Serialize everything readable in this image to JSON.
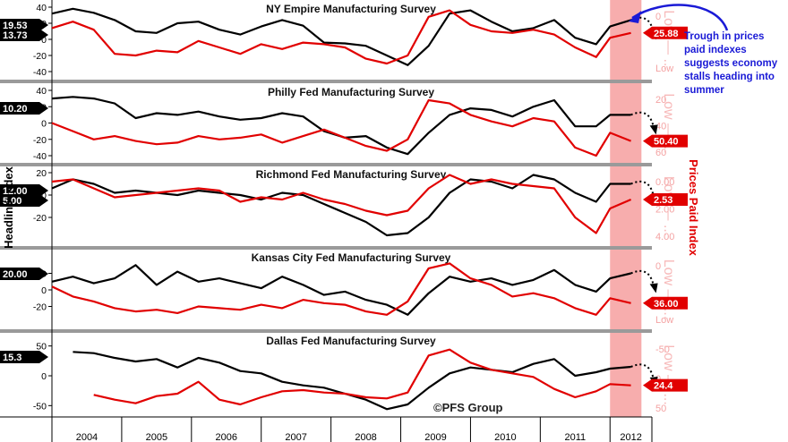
{
  "chart_data": {
    "type": "line",
    "x_axis": {
      "years": [
        "2004",
        "2005",
        "2006",
        "2007",
        "2008",
        "2009",
        "2010",
        "2011",
        "2012"
      ],
      "range": [
        2004,
        2012.6
      ]
    },
    "left_axis_title": "Headline Index",
    "right_axis_title": "Prices Paid Index",
    "watermark": "©PFS Group",
    "annotation": "Trough in prices paid indexes suggests economy stalls heading into summer",
    "highlight_region": {
      "from": 2012.0,
      "to": 2012.45
    },
    "colors": {
      "headline": "#000000",
      "prices": "#e10000",
      "highlight": "#f7a9a9",
      "annotation": "#1a1ad6"
    },
    "panels": [
      {
        "title": "NY Empire Manufacturing Survey",
        "left_ylim": [
          -40,
          40
        ],
        "left_ticks": [
          "40",
          "20",
          "0",
          "-20",
          "-40"
        ],
        "right_ticks": [
          "0",
          "Low"
        ],
        "right_side_label": "Low — ...",
        "headline_badges": [
          "19.53",
          "13.73"
        ],
        "prices_badge": "25.88",
        "series": [
          {
            "name": "Headline Index",
            "color": "#000000",
            "x": [
              2004.0,
              2004.3,
              2004.6,
              2004.9,
              2005.2,
              2005.5,
              2005.8,
              2006.1,
              2006.4,
              2006.7,
              2007.0,
              2007.3,
              2007.6,
              2007.9,
              2008.2,
              2008.5,
              2008.8,
              2009.1,
              2009.4,
              2009.7,
              2010.0,
              2010.3,
              2010.6,
              2010.9,
              2011.2,
              2011.5,
              2011.8,
              2012.0,
              2012.3
            ],
            "y": [
              32,
              38,
              33,
              24,
              10,
              8,
              20,
              22,
              12,
              6,
              16,
              24,
              17,
              -4,
              -5,
              -8,
              -20,
              -32,
              -8,
              32,
              36,
              22,
              10,
              14,
              24,
              2,
              -6,
              16,
              24
            ]
          },
          {
            "name": "Prices Paid Index",
            "color": "#e10000",
            "x": [
              2004.0,
              2004.3,
              2004.6,
              2004.9,
              2005.2,
              2005.5,
              2005.8,
              2006.1,
              2006.4,
              2006.7,
              2007.0,
              2007.3,
              2007.6,
              2007.9,
              2008.2,
              2008.5,
              2008.8,
              2009.1,
              2009.4,
              2009.7,
              2010.0,
              2010.3,
              2010.6,
              2010.9,
              2011.2,
              2011.5,
              2011.8,
              2012.0,
              2012.3
            ],
            "y": [
              14,
              22,
              12,
              -18,
              -20,
              -14,
              -16,
              -2,
              -10,
              -18,
              -6,
              -12,
              -4,
              -6,
              -10,
              -24,
              -30,
              -20,
              28,
              36,
              18,
              10,
              8,
              12,
              6,
              -10,
              -22,
              2,
              8
            ]
          }
        ]
      },
      {
        "title": "Philly Fed Manufacturing Survey",
        "left_ylim": [
          -40,
          40
        ],
        "left_ticks": [
          "40",
          "20",
          "0",
          "-20",
          "-40"
        ],
        "right_ticks": [
          "20",
          "40",
          "60"
        ],
        "right_side_label": "Low — ...",
        "headline_badges": [
          "10.20"
        ],
        "prices_badge": "50.40",
        "series": [
          {
            "name": "Headline Index",
            "color": "#000000",
            "x": [
              2004.0,
              2004.3,
              2004.6,
              2004.9,
              2005.2,
              2005.5,
              2005.8,
              2006.1,
              2006.4,
              2006.7,
              2007.0,
              2007.3,
              2007.6,
              2007.9,
              2008.2,
              2008.5,
              2008.8,
              2009.1,
              2009.4,
              2009.7,
              2010.0,
              2010.3,
              2010.6,
              2010.9,
              2011.2,
              2011.5,
              2011.8,
              2012.0,
              2012.3
            ],
            "y": [
              30,
              32,
              30,
              24,
              6,
              12,
              10,
              14,
              8,
              4,
              6,
              12,
              8,
              -10,
              -18,
              -16,
              -30,
              -38,
              -12,
              10,
              18,
              16,
              8,
              20,
              28,
              -4,
              -4,
              10,
              10
            ]
          },
          {
            "name": "Prices Paid Index",
            "color": "#e10000",
            "x": [
              2004.0,
              2004.3,
              2004.6,
              2004.9,
              2005.2,
              2005.5,
              2005.8,
              2006.1,
              2006.4,
              2006.7,
              2007.0,
              2007.3,
              2007.6,
              2007.9,
              2008.2,
              2008.5,
              2008.8,
              2009.1,
              2009.4,
              2009.7,
              2010.0,
              2010.3,
              2010.6,
              2010.9,
              2011.2,
              2011.5,
              2011.8,
              2012.0,
              2012.3
            ],
            "y": [
              0,
              -10,
              -20,
              -16,
              -22,
              -26,
              -24,
              -16,
              -20,
              -18,
              -14,
              -24,
              -16,
              -8,
              -18,
              -28,
              -34,
              -20,
              28,
              24,
              10,
              2,
              -4,
              6,
              2,
              -30,
              -40,
              -12,
              -22
            ]
          }
        ]
      },
      {
        "title": "Richmond Fed Manufacturing Survey",
        "left_ylim": [
          -40,
          20
        ],
        "left_ticks": [
          "20",
          "0",
          "-20"
        ],
        "right_ticks": [
          "0.00",
          "2.00",
          "4.00"
        ],
        "right_side_label": "Low — ...",
        "headline_badges": [
          "12.00",
          "5.00"
        ],
        "prices_badge": "2.53",
        "series": [
          {
            "name": "Headline Index",
            "color": "#000000",
            "x": [
              2004.0,
              2004.3,
              2004.6,
              2004.9,
              2005.2,
              2005.5,
              2005.8,
              2006.1,
              2006.4,
              2006.7,
              2007.0,
              2007.3,
              2007.6,
              2007.9,
              2008.2,
              2008.5,
              2008.8,
              2009.1,
              2009.4,
              2009.7,
              2010.0,
              2010.3,
              2010.6,
              2010.9,
              2011.2,
              2011.5,
              2011.8,
              2012.0,
              2012.3
            ],
            "y": [
              6,
              14,
              10,
              2,
              4,
              2,
              0,
              4,
              2,
              0,
              -4,
              2,
              0,
              -8,
              -16,
              -24,
              -36,
              -34,
              -20,
              2,
              14,
              12,
              6,
              18,
              14,
              2,
              -6,
              10,
              10
            ]
          },
          {
            "name": "Prices Paid Index",
            "color": "#e10000",
            "x": [
              2004.0,
              2004.3,
              2004.6,
              2004.9,
              2005.2,
              2005.5,
              2005.8,
              2006.1,
              2006.4,
              2006.7,
              2007.0,
              2007.3,
              2007.6,
              2007.9,
              2008.2,
              2008.5,
              2008.8,
              2009.1,
              2009.4,
              2009.7,
              2010.0,
              2010.3,
              2010.6,
              2010.9,
              2011.2,
              2011.5,
              2011.8,
              2012.0,
              2012.3
            ],
            "y": [
              12,
              14,
              6,
              -2,
              0,
              2,
              4,
              6,
              4,
              -6,
              -2,
              -4,
              2,
              -4,
              -8,
              -14,
              -18,
              -14,
              6,
              18,
              10,
              14,
              10,
              8,
              6,
              -20,
              -34,
              -12,
              -4
            ]
          }
        ]
      },
      {
        "title": "Kansas City Fed Manufacturing Survey",
        "left_ylim": [
          -40,
          40
        ],
        "left_ticks": [
          "20",
          "0",
          "-20"
        ],
        "right_ticks": [
          "0",
          "Low"
        ],
        "right_side_label": "Low — ...",
        "headline_badges": [
          "20.00"
        ],
        "prices_badge": "36.00",
        "series": [
          {
            "name": "Headline Index",
            "color": "#000000",
            "x": [
              2004.0,
              2004.3,
              2004.6,
              2004.9,
              2005.2,
              2005.5,
              2005.8,
              2006.1,
              2006.4,
              2006.7,
              2007.0,
              2007.3,
              2007.6,
              2007.9,
              2008.2,
              2008.5,
              2008.8,
              2009.1,
              2009.4,
              2009.7,
              2010.0,
              2010.3,
              2010.6,
              2010.9,
              2011.2,
              2011.5,
              2011.8,
              2012.0,
              2012.3
            ],
            "y": [
              10,
              16,
              8,
              14,
              30,
              6,
              22,
              10,
              14,
              8,
              2,
              16,
              6,
              -6,
              -2,
              -12,
              -18,
              -30,
              -4,
              16,
              10,
              14,
              6,
              12,
              24,
              6,
              -2,
              14,
              20
            ]
          },
          {
            "name": "Prices Paid Index",
            "color": "#e10000",
            "x": [
              2004.0,
              2004.3,
              2004.6,
              2004.9,
              2005.2,
              2005.5,
              2005.8,
              2006.1,
              2006.4,
              2006.7,
              2007.0,
              2007.3,
              2007.6,
              2007.9,
              2008.2,
              2008.5,
              2008.8,
              2009.1,
              2009.4,
              2009.7,
              2010.0,
              2010.3,
              2010.6,
              2010.9,
              2011.2,
              2011.5,
              2011.8,
              2012.0,
              2012.3
            ],
            "y": [
              4,
              -8,
              -14,
              -22,
              -26,
              -24,
              -28,
              -20,
              -22,
              -24,
              -18,
              -22,
              -12,
              -16,
              -18,
              -26,
              -30,
              -14,
              26,
              32,
              14,
              6,
              -8,
              -4,
              -10,
              -22,
              -30,
              -10,
              -16
            ]
          }
        ]
      },
      {
        "title": "Dallas Fed Manufacturing Survey",
        "left_ylim": [
          -60,
          60
        ],
        "left_ticks": [
          "50",
          "0",
          "-50"
        ],
        "right_ticks": [
          "-50",
          "0",
          "50"
        ],
        "right_side_label": "Low — ...",
        "headline_badges": [
          "15.3"
        ],
        "prices_badge": "24.4",
        "series": [
          {
            "name": "Headline Index",
            "color": "#000000",
            "x": [
              2004.3,
              2004.6,
              2004.9,
              2005.2,
              2005.5,
              2005.8,
              2006.1,
              2006.4,
              2006.7,
              2007.0,
              2007.3,
              2007.6,
              2007.9,
              2008.2,
              2008.5,
              2008.8,
              2009.1,
              2009.4,
              2009.7,
              2010.0,
              2010.3,
              2010.6,
              2010.9,
              2011.2,
              2011.5,
              2011.8,
              2012.0,
              2012.3
            ],
            "y": [
              40,
              38,
              30,
              24,
              28,
              14,
              30,
              22,
              8,
              4,
              -10,
              -16,
              -20,
              -30,
              -40,
              -56,
              -48,
              -20,
              4,
              14,
              10,
              6,
              20,
              28,
              0,
              6,
              12,
              15
            ]
          },
          {
            "name": "Prices Paid Index",
            "color": "#e10000",
            "x": [
              2004.6,
              2004.9,
              2005.2,
              2005.5,
              2005.8,
              2006.1,
              2006.4,
              2006.7,
              2007.0,
              2007.3,
              2007.6,
              2007.9,
              2008.2,
              2008.5,
              2008.8,
              2009.1,
              2009.4,
              2009.7,
              2010.0,
              2010.3,
              2010.6,
              2010.9,
              2011.2,
              2011.5,
              2011.8,
              2012.0,
              2012.3
            ],
            "y": [
              -32,
              -40,
              -46,
              -34,
              -30,
              -10,
              -40,
              -48,
              -36,
              -26,
              -24,
              -28,
              -30,
              -36,
              -38,
              -28,
              34,
              44,
              22,
              10,
              4,
              -2,
              -22,
              -36,
              -26,
              -14,
              -16
            ]
          }
        ]
      }
    ]
  }
}
